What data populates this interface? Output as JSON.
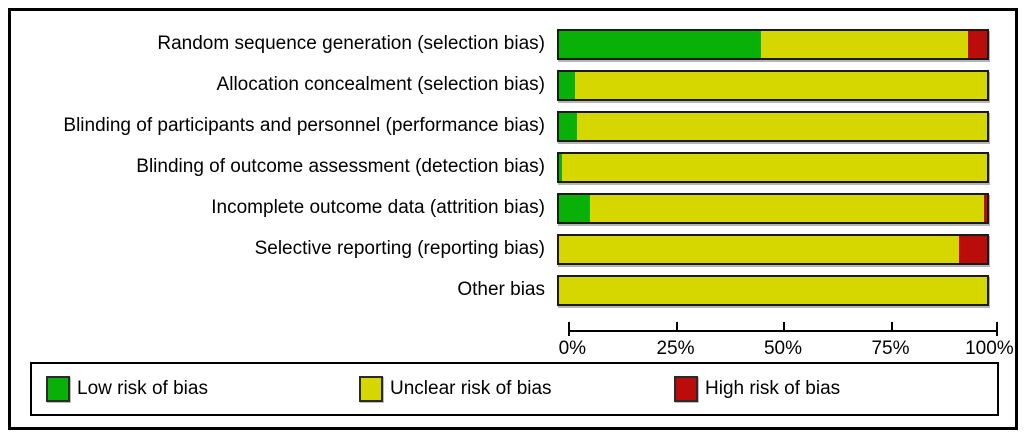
{
  "chart_data": {
    "type": "bar",
    "orientation": "horizontal",
    "stacked": true,
    "unit": "percent",
    "title": "",
    "xlabel": "",
    "ylabel": "",
    "xlim": [
      0,
      100
    ],
    "grid": false,
    "legend_position": "bottom",
    "categories": [
      "Random sequence generation (selection bias)",
      "Allocation concealment (selection bias)",
      "Blinding of participants and personnel (performance bias)",
      "Blinding of outcome assessment (detection bias)",
      "Incomplete outcome data (attrition bias)",
      "Selective reporting (reporting bias)",
      "Other bias"
    ],
    "series": [
      {
        "name": "Low risk of bias",
        "color": "#08b008",
        "values": [
          47.2,
          3.7,
          4.2,
          0.7,
          7.3,
          0,
          0
        ]
      },
      {
        "name": "Unclear risk of bias",
        "color": "#d7d700",
        "values": [
          48.3,
          96.3,
          95.8,
          99.3,
          92.0,
          93.5,
          100
        ]
      },
      {
        "name": "High risk of bias",
        "color": "#bb0c0c",
        "values": [
          4.5,
          0,
          0,
          0,
          0.7,
          6.5,
          0
        ]
      }
    ],
    "x_ticks": [
      "0%",
      "25%",
      "50%",
      "75%",
      "100%"
    ],
    "x_tick_positions": [
      0,
      25,
      50,
      75,
      100
    ]
  },
  "colors": {
    "bar_border": "#1a1a1a",
    "frame_border": "#000000",
    "background": "#ffffff",
    "text": "#000000"
  }
}
